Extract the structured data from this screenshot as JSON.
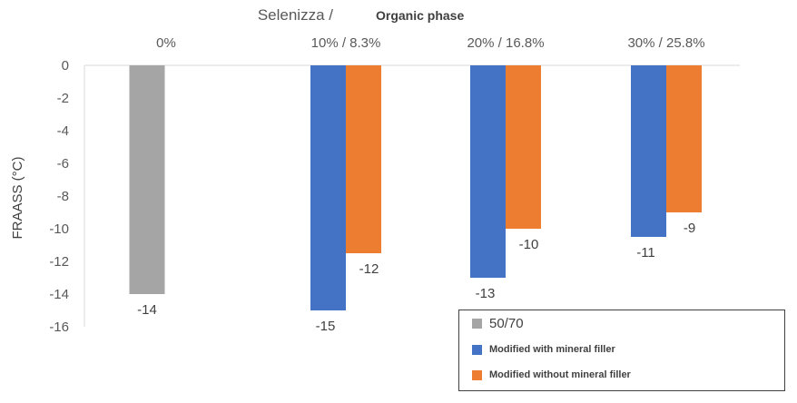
{
  "chart_data": {
    "type": "bar",
    "title": "Selenizza /",
    "title_suffix": "Organic phase",
    "ylabel": "FRAASS (°C)",
    "xlabel": "",
    "categories": [
      "0%",
      "10% / 8.3%",
      "20% / 16.8%",
      "30% / 25.8%"
    ],
    "ylim": [
      -16,
      0
    ],
    "yticks": [
      "0",
      "-2",
      "-4",
      "-6",
      "-8",
      "-10",
      "-12",
      "-14",
      "-16"
    ],
    "x_axis_position": "top",
    "grid": false,
    "legend_position": "bottom-right",
    "series": [
      {
        "name": "50/70",
        "color": "#a5a5a5",
        "values": [
          -14,
          null,
          null,
          null
        ],
        "labels": [
          "-14",
          "",
          "",
          ""
        ]
      },
      {
        "name": "Modified with mineral filler",
        "color": "#4472c4",
        "values": [
          null,
          -15,
          -13,
          -10.5
        ],
        "labels": [
          "",
          "-15",
          "-13",
          "-11"
        ]
      },
      {
        "name": "Modified without mineral filler",
        "color": "#ed7d31",
        "values": [
          null,
          -11.5,
          -10,
          -9
        ],
        "labels": [
          "",
          "-12",
          "-10",
          "-9"
        ]
      }
    ]
  }
}
